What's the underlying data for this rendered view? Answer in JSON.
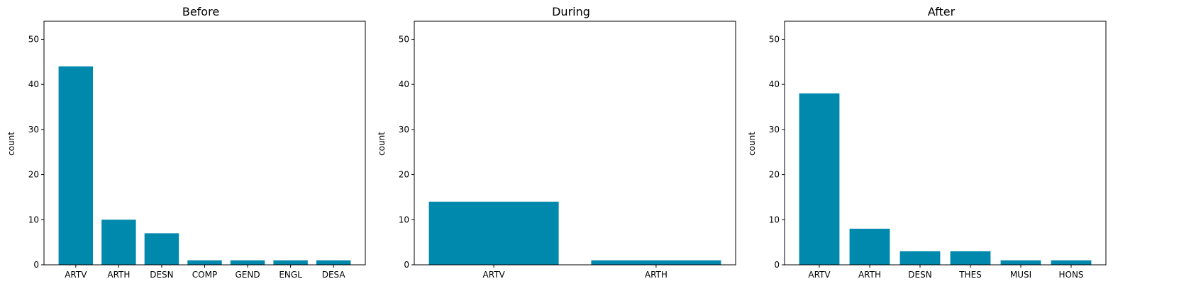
{
  "colors": {
    "bar": "#0088ad",
    "axis": "#000000",
    "background": "#ffffff"
  },
  "chart_data": [
    {
      "type": "bar",
      "title": "Before",
      "xlabel": "",
      "ylabel": "count",
      "ylim": [
        0,
        54
      ],
      "yticks": [
        0,
        10,
        20,
        30,
        40,
        50
      ],
      "grid": false,
      "categories": [
        "ARTV",
        "ARTH",
        "DESN",
        "COMP",
        "GEND",
        "ENGL",
        "DESA"
      ],
      "values": [
        44,
        10,
        7,
        1,
        1,
        1,
        1
      ]
    },
    {
      "type": "bar",
      "title": "During",
      "xlabel": "",
      "ylabel": "count",
      "ylim": [
        0,
        54
      ],
      "yticks": [
        0,
        10,
        20,
        30,
        40,
        50
      ],
      "grid": false,
      "categories": [
        "ARTV",
        "ARTH"
      ],
      "values": [
        14,
        1
      ]
    },
    {
      "type": "bar",
      "title": "After",
      "xlabel": "",
      "ylabel": "count",
      "ylim": [
        0,
        54
      ],
      "yticks": [
        0,
        10,
        20,
        30,
        40,
        50
      ],
      "grid": false,
      "categories": [
        "ARTV",
        "ARTH",
        "DESN",
        "THES",
        "MUSI",
        "HONS"
      ],
      "values": [
        38,
        8,
        3,
        3,
        1,
        1
      ]
    }
  ]
}
